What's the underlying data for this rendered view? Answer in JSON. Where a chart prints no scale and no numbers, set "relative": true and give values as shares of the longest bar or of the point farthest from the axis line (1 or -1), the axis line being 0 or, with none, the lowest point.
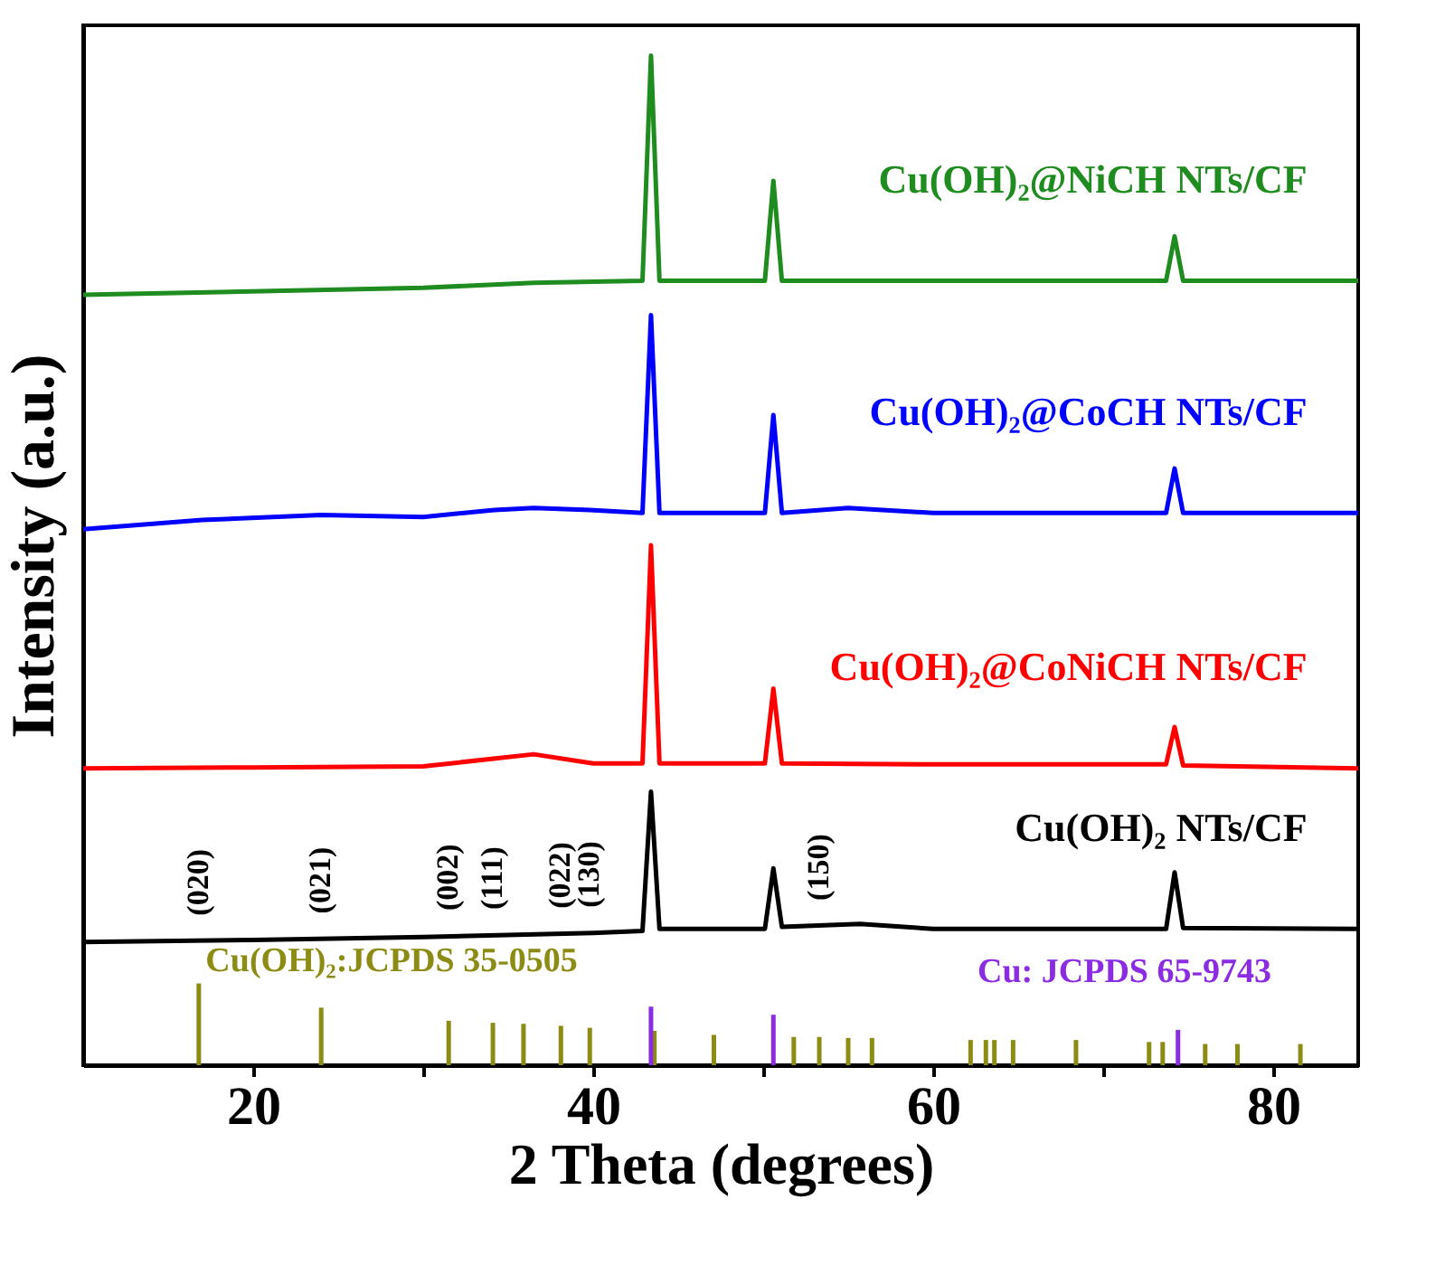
{
  "chart_data": {
    "type": "line",
    "relative": true,
    "xlabel": "2 Theta (degrees)",
    "ylabel": "Intensity (a.u.)",
    "xlim": [
      10,
      85
    ],
    "xticks": [
      20,
      {
        "value": 30,
        "label": null
      },
      40,
      {
        "value": 50,
        "label": null
      },
      60,
      {
        "value": 70,
        "label": null
      },
      80
    ],
    "grid": false,
    "marker": "none",
    "line_style": "solid",
    "series": [
      {
        "name": "Cu(OH)₂ NTs/CF",
        "color": "#000000",
        "x": [
          10,
          20,
          30,
          40,
          42.9,
          43.4,
          43.9,
          50.1,
          50.6,
          51.1,
          55.7,
          60,
          73.7,
          74.2,
          74.7,
          85
        ],
        "values": [
          0.122,
          0.124,
          0.127,
          0.131,
          0.133,
          0.271,
          0.135,
          0.135,
          0.195,
          0.137,
          0.14,
          0.135,
          0.135,
          0.191,
          0.136,
          0.135
        ]
      },
      {
        "name": "Cu(OH)₂@CoNiCH NTs/CF",
        "color": "#ff0000",
        "x": [
          10,
          20,
          30,
          36.5,
          40,
          42.9,
          43.4,
          43.9,
          50.1,
          50.6,
          51.1,
          60,
          73.7,
          74.2,
          74.7,
          85
        ],
        "values": [
          0.294,
          0.295,
          0.296,
          0.308,
          0.299,
          0.299,
          0.515,
          0.299,
          0.299,
          0.373,
          0.299,
          0.298,
          0.298,
          0.335,
          0.297,
          0.294
        ]
      },
      {
        "name": "Cu(OH)₂@CoCH NTs/CF",
        "color": "#0000ff",
        "x": [
          10,
          17,
          24,
          30,
          34.2,
          36.5,
          39.8,
          42.9,
          43.4,
          43.9,
          50.1,
          50.6,
          51.1,
          55,
          60,
          73.7,
          74.2,
          74.7,
          85
        ],
        "values": [
          0.531,
          0.54,
          0.545,
          0.543,
          0.55,
          0.552,
          0.55,
          0.547,
          0.743,
          0.547,
          0.547,
          0.644,
          0.547,
          0.552,
          0.547,
          0.547,
          0.591,
          0.547,
          0.547
        ]
      },
      {
        "name": "Cu(OH)₂@NiCH NTs/CF",
        "color": "#1e8c1e",
        "x": [
          10,
          30,
          36.5,
          42.9,
          43.4,
          43.9,
          50.1,
          50.6,
          51.1,
          60,
          73.7,
          74.2,
          74.7,
          85
        ],
        "values": [
          0.763,
          0.77,
          0.775,
          0.777,
          1.0,
          0.777,
          0.777,
          0.876,
          0.777,
          0.777,
          0.777,
          0.821,
          0.777,
          0.777
        ]
      },
      {
        "name": "Cu(OH)₂:JCPDS 35-0505",
        "type": "bar",
        "color": "#8c8c14",
        "x": [
          16.8,
          24.0,
          31.5,
          34.1,
          35.9,
          38.1,
          39.8,
          43.6,
          47.1,
          51.8,
          53.3,
          55.0,
          56.4,
          62.2,
          63.1,
          63.6,
          64.7,
          68.4,
          72.7,
          73.5,
          76.0,
          77.9,
          81.6
        ],
        "values": [
          0.081,
          0.057,
          0.044,
          0.042,
          0.041,
          0.039,
          0.037,
          0.034,
          0.03,
          0.028,
          0.028,
          0.027,
          0.027,
          0.025,
          0.025,
          0.025,
          0.025,
          0.025,
          0.023,
          0.023,
          0.021,
          0.021,
          0.021
        ]
      },
      {
        "name": "Cu: JCPDS 65-9743",
        "type": "bar",
        "color": "#8b2be2",
        "x": [
          43.4,
          50.6,
          74.4
        ],
        "values": [
          0.058,
          0.05,
          0.035
        ]
      }
    ],
    "annotations": [
      {
        "text": "(020)",
        "x": 16.8,
        "y": 0.123
      },
      {
        "text": "(021)",
        "x": 24.0,
        "y": 0.125
      },
      {
        "text": "(002)",
        "x": 31.5,
        "y": 0.128
      },
      {
        "text": "(111)",
        "x": 34.1,
        "y": 0.129
      },
      {
        "text": "(022)",
        "x": 38.1,
        "y": 0.13
      },
      {
        "text": "(130)",
        "x": 39.8,
        "y": 0.131
      },
      {
        "text": "(150)",
        "x": 53.3,
        "y": 0.138
      }
    ]
  }
}
